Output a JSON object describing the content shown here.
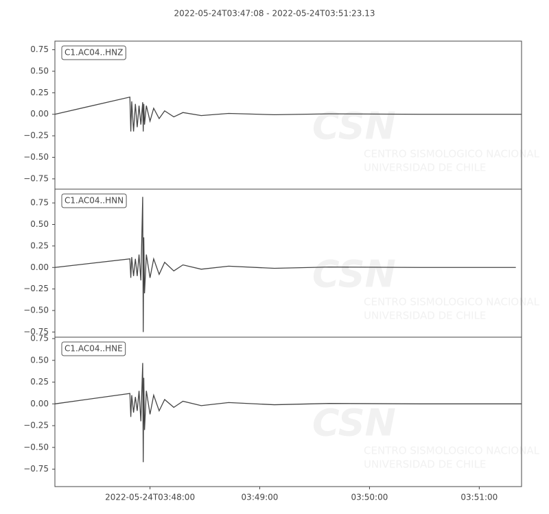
{
  "chart_data": [
    {
      "type": "line",
      "title": "2022-05-24T03:47:08  -  2022-05-24T03:51:23.13",
      "watermark": [
        "CSN",
        "CENTRO SISMOLOGICO NACIONAL",
        "UNIVERSIDAD DE CHILE"
      ],
      "x": [
        "2022-05-24T03:47:08",
        "2022-05-24T03:47:49",
        "2022-05-24T03:47:49.5",
        "2022-05-24T03:47:50",
        "2022-05-24T03:47:51",
        "2022-05-24T03:47:52",
        "2022-05-24T03:47:53",
        "2022-05-24T03:47:54",
        "2022-05-24T03:47:55",
        "2022-05-24T03:47:56",
        "2022-05-24T03:47:56.3",
        "2022-05-24T03:47:56.6",
        "2022-05-24T03:47:57",
        "2022-05-24T03:47:58",
        "2022-05-24T03:48:00",
        "2022-05-24T03:48:02",
        "2022-05-24T03:48:05",
        "2022-05-24T03:48:08",
        "2022-05-24T03:48:13",
        "2022-05-24T03:48:18",
        "2022-05-24T03:48:28",
        "2022-05-24T03:48:43",
        "2022-05-24T03:49:08",
        "2022-05-24T03:49:38",
        "2022-05-24T03:50:28",
        "2022-05-24T03:51:23"
      ],
      "series": [
        {
          "name": "C1.AC04..HNZ",
          "color": "#444444",
          "values": [
            0,
            0.2,
            -0.2,
            0.15,
            -0.2,
            0.12,
            -0.15,
            0.1,
            -0.12,
            0.14,
            -0.2,
            0.12,
            -0.12,
            0.1,
            -0.08,
            0.07,
            -0.05,
            0.04,
            -0.03,
            0.02,
            -0.015,
            0.01,
            -0.005,
            0.005,
            0,
            0
          ]
        }
      ],
      "xlim": [
        "2022-05-24T03:47:08",
        "2022-05-24T03:51:23.13"
      ],
      "ylim": [
        -0.87,
        0.85
      ],
      "yticks": [
        0.75,
        {
          "value": 0.5,
          "label": "0.50"
        },
        0.25,
        {
          "value": 0,
          "label": "0.00"
        },
        {
          "value": -0.25,
          "label": "−0.25"
        },
        {
          "value": -0.5,
          "label": "−0.50"
        },
        {
          "value": -0.75,
          "label": "−0.75"
        }
      ]
    },
    {
      "type": "line",
      "watermark": [
        "CSN",
        "CENTRO SISMOLOGICO NACIONAL",
        "UNIVERSIDAD DE CHILE"
      ],
      "x": [
        "2022-05-24T03:47:08",
        "2022-05-24T03:47:49",
        "2022-05-24T03:47:49.5",
        "2022-05-24T03:47:50",
        "2022-05-24T03:47:51",
        "2022-05-24T03:47:52",
        "2022-05-24T03:47:53",
        "2022-05-24T03:47:54",
        "2022-05-24T03:47:55",
        "2022-05-24T03:47:56",
        "2022-05-24T03:47:56.3",
        "2022-05-24T03:47:56.6",
        "2022-05-24T03:47:57",
        "2022-05-24T03:47:58",
        "2022-05-24T03:48:00",
        "2022-05-24T03:48:02",
        "2022-05-24T03:48:05",
        "2022-05-24T03:48:08",
        "2022-05-24T03:48:13",
        "2022-05-24T03:48:18",
        "2022-05-24T03:48:28",
        "2022-05-24T03:48:43",
        "2022-05-24T03:49:08",
        "2022-05-24T03:49:38",
        "2022-05-24T03:50:28",
        "2022-05-24T03:51:20"
      ],
      "series": [
        {
          "name": "C1.AC04..HNN",
          "color": "#444444",
          "values": [
            0,
            0.1,
            -0.12,
            0.12,
            -0.1,
            0.1,
            -0.1,
            0.15,
            -0.15,
            0.82,
            -0.75,
            0.35,
            -0.3,
            0.15,
            -0.12,
            0.1,
            -0.08,
            0.06,
            -0.04,
            0.03,
            -0.02,
            0.015,
            -0.01,
            0.005,
            0,
            0
          ]
        }
      ],
      "xlim": [
        "2022-05-24T03:47:08",
        "2022-05-24T03:51:23.13"
      ],
      "ylim": [
        -0.81,
        0.91
      ],
      "yticks": [
        0.75,
        {
          "value": 0.5,
          "label": "0.50"
        },
        0.25,
        {
          "value": 0,
          "label": "0.00"
        },
        {
          "value": -0.25,
          "label": "−0.25"
        },
        {
          "value": -0.5,
          "label": "−0.50"
        },
        {
          "value": -0.75,
          "label": "−0.75"
        }
      ]
    },
    {
      "type": "line",
      "watermark": [
        "CSN",
        "CENTRO SISMOLOGICO NACIONAL",
        "UNIVERSIDAD DE CHILE"
      ],
      "x": [
        "2022-05-24T03:47:08",
        "2022-05-24T03:47:49",
        "2022-05-24T03:47:49.5",
        "2022-05-24T03:47:50",
        "2022-05-24T03:47:51",
        "2022-05-24T03:47:52",
        "2022-05-24T03:47:53",
        "2022-05-24T03:47:54",
        "2022-05-24T03:47:55",
        "2022-05-24T03:47:56",
        "2022-05-24T03:47:56.3",
        "2022-05-24T03:47:56.6",
        "2022-05-24T03:47:57",
        "2022-05-24T03:47:58",
        "2022-05-24T03:48:00",
        "2022-05-24T03:48:02",
        "2022-05-24T03:48:05",
        "2022-05-24T03:48:08",
        "2022-05-24T03:48:13",
        "2022-05-24T03:48:18",
        "2022-05-24T03:48:28",
        "2022-05-24T03:48:43",
        "2022-05-24T03:49:08",
        "2022-05-24T03:49:38",
        "2022-05-24T03:50:28",
        "2022-05-24T03:51:23"
      ],
      "series": [
        {
          "name": "C1.AC04..HNE",
          "color": "#444444",
          "values": [
            0,
            0.12,
            -0.15,
            0.1,
            -0.1,
            0.08,
            -0.08,
            0.15,
            -0.2,
            0.47,
            -0.67,
            0.3,
            -0.3,
            0.15,
            -0.12,
            0.1,
            -0.08,
            0.05,
            -0.04,
            0.03,
            -0.02,
            0.015,
            -0.01,
            0.005,
            0,
            0
          ]
        }
      ],
      "xlim": [
        "2022-05-24T03:47:08",
        "2022-05-24T03:51:23.13"
      ],
      "ylim": [
        -0.95,
        0.766
      ],
      "yticks": [
        0.75,
        {
          "value": 0.5,
          "label": "0.50"
        },
        0.25,
        {
          "value": 0,
          "label": "0.00"
        },
        {
          "value": -0.25,
          "label": "−0.25"
        },
        {
          "value": -0.5,
          "label": "−0.50"
        },
        {
          "value": -0.75,
          "label": "−0.75"
        }
      ],
      "xticks": [
        "2022-05-24T03:48:00",
        {
          "value": "2022-05-24T03:49:00",
          "label": "03:49:00"
        },
        {
          "value": "2022-05-24T03:50:00",
          "label": "03:50:00"
        },
        {
          "value": "2022-05-24T03:51:00",
          "label": "03:51:00"
        }
      ]
    }
  ]
}
